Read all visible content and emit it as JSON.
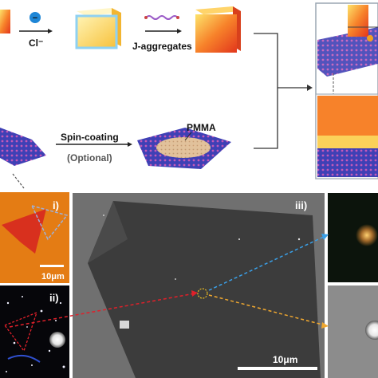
{
  "top_scheme": {
    "ion_label": "Cl⁻",
    "ion_badge": "−",
    "reagent_label": "J-aggregates",
    "coating_label": "Spin-coating",
    "optional_label": "(Optional)",
    "polymer_label": "PMMA"
  },
  "panels": {
    "i_label": "i)",
    "i_scale": "10μm",
    "ii_label": "ii)",
    "iii_label": "iii)",
    "iii_scale": "10μm"
  },
  "colors": {
    "cube_orange": "#f7822a",
    "cube_yellow": "#fbd15a",
    "flake_blue": "#4b4fc4",
    "arrow_blue": "#3aa0e8",
    "arrow_orange": "#f0a830",
    "arrow_red": "#e0202a",
    "sem_gray": "#7a7a7a"
  }
}
